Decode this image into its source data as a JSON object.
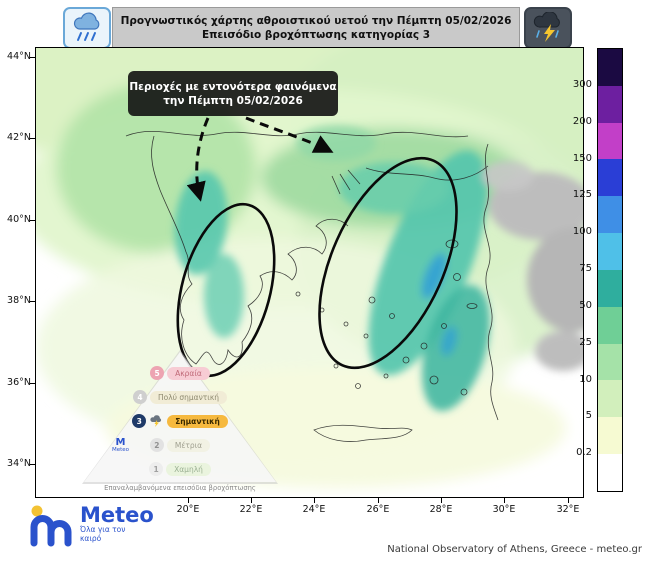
{
  "header": {
    "title_line1": "Προγνωστικός χάρτης αθροιστικού υετού την Πέμπτη 05/02/2026",
    "title_line2": "Επεισόδιο βροχόπτωσης κατηγορίας 3",
    "left_icon": "rain-cloud-icon",
    "right_icon": "storm-cloud-lightning-icon"
  },
  "annotation": {
    "line1": "Περιοχές με εντονότερα φαινόμενα",
    "line2": "την Πέμπτη 05/02/2026"
  },
  "axes": {
    "y_ticks": [
      "44°N",
      "42°N",
      "40°N",
      "38°N",
      "36°N",
      "34°N"
    ],
    "x_ticks": [
      "20°E",
      "22°E",
      "24°E",
      "26°E",
      "28°E",
      "30°E",
      "32°E"
    ]
  },
  "colorbar": {
    "tick_labels": [
      "300",
      "200",
      "150",
      "125",
      "100",
      "75",
      "50",
      "25",
      "10",
      "5",
      "0.2"
    ],
    "segment_colors_top_to_bottom": [
      "#1b0a42",
      "#6d1fa0",
      "#c23fc8",
      "#2a3ed6",
      "#3f8fe6",
      "#4fc0e8",
      "#2fae9e",
      "#6fcf96",
      "#a5e2a8",
      "#d2efbc",
      "#f6fad2",
      "#ffffff"
    ]
  },
  "pyramid": {
    "levels": [
      {
        "num": "5",
        "label": "Ακραία",
        "badge": "#eda4b2",
        "badge_text": "#ffffff",
        "pill": "#f7ccd4",
        "text": "#c06a78",
        "active": false
      },
      {
        "num": "4",
        "label": "Πολύ σημαντική",
        "badge": "#cfcfcf",
        "badge_text": "#ffffff",
        "pill": "#f1ecd6",
        "text": "#8f8a70",
        "active": false
      },
      {
        "num": "3",
        "label": "Σημαντική",
        "badge": "#1f3a68",
        "badge_text": "#ffffff",
        "pill": "#f6b93f",
        "text": "#3a2a00",
        "active": true
      },
      {
        "num": "2",
        "label": "Μέτρια",
        "badge": "#e2e2e2",
        "badge_text": "#909090",
        "pill": "#f2f2e4",
        "text": "#a0a090",
        "active": false
      },
      {
        "num": "1",
        "label": "Χαμηλή",
        "badge": "#ededed",
        "badge_text": "#a0a0a0",
        "pill": "#eaf4de",
        "text": "#9ab092",
        "active": false
      }
    ],
    "caption": "Επαναλαμβανόμενα επεισόδια βροχόπτωσης",
    "mini_logo_text": "Meteo",
    "active_level": "3"
  },
  "logo": {
    "name": "Meteo",
    "tagline": "Όλα για τον καιρό"
  },
  "footer": {
    "credit": "National Observatory of Athens, Greece - meteo.gr"
  }
}
